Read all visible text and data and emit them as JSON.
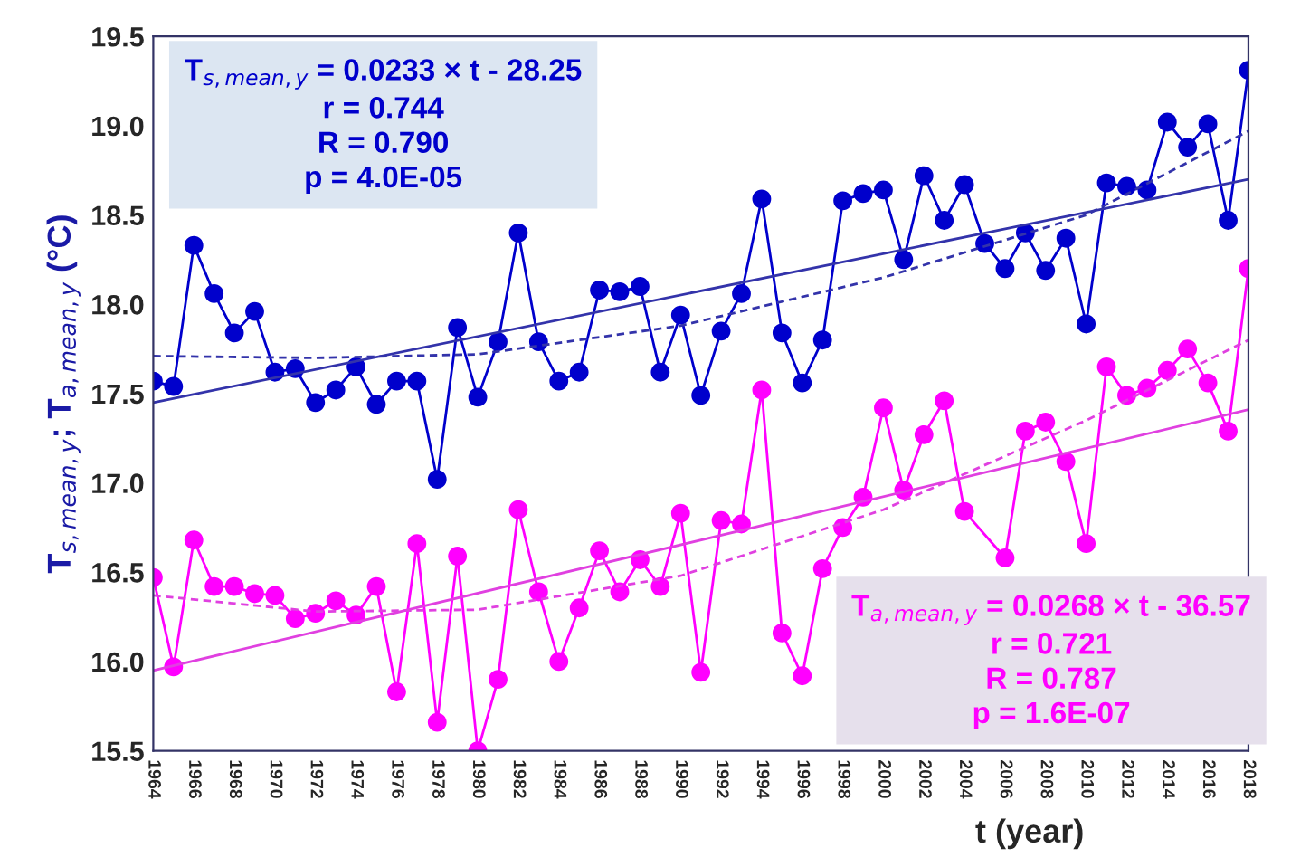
{
  "chart_data": {
    "type": "line",
    "xlabel": "t (year)",
    "ylabel": "T$_{s,mean,y}$; T$_{a,mean,y}$ (°C)",
    "x": [
      1964,
      1965,
      1966,
      1967,
      1968,
      1969,
      1970,
      1971,
      1972,
      1973,
      1974,
      1975,
      1976,
      1977,
      1978,
      1979,
      1980,
      1981,
      1982,
      1983,
      1984,
      1985,
      1986,
      1987,
      1988,
      1989,
      1990,
      1991,
      1992,
      1993,
      1994,
      1995,
      1996,
      1997,
      1998,
      1999,
      2000,
      2001,
      2002,
      2003,
      2004,
      2005,
      2006,
      2007,
      2008,
      2009,
      2010,
      2011,
      2012,
      2013,
      2014,
      2015,
      2016,
      2017,
      2018
    ],
    "series": [
      {
        "color": "#0000cc",
        "marker": "circle",
        "values": [
          17.57,
          17.54,
          18.33,
          18.06,
          17.84,
          17.96,
          17.62,
          17.64,
          17.45,
          17.52,
          17.65,
          17.44,
          17.57,
          17.57,
          17.02,
          17.87,
          17.48,
          17.79,
          18.4,
          17.79,
          17.57,
          17.62,
          18.08,
          18.07,
          18.1,
          17.62,
          17.94,
          17.49,
          17.85,
          18.06,
          18.59,
          17.84,
          17.56,
          17.8,
          18.58,
          18.62,
          18.64,
          18.25,
          18.72,
          18.47,
          18.67,
          18.34,
          18.2,
          18.4,
          18.19,
          18.37,
          17.89,
          18.68,
          18.66,
          18.64,
          19.02,
          18.88,
          19.01,
          18.47,
          19.31
        ]
      },
      {
        "color": "#ff00ff",
        "marker": "circle",
        "values": [
          16.47,
          15.97,
          16.68,
          16.42,
          16.42,
          16.38,
          16.37,
          16.24,
          16.27,
          16.34,
          16.26,
          16.42,
          15.83,
          16.66,
          15.66,
          16.59,
          15.5,
          15.9,
          16.85,
          16.39,
          16.0,
          16.3,
          16.62,
          16.39,
          16.57,
          16.42,
          16.83,
          15.94,
          16.79,
          16.77,
          17.52,
          16.16,
          15.92,
          16.52,
          16.75,
          16.92,
          17.42,
          16.96,
          17.27,
          17.46,
          16.84,
          null,
          16.58,
          17.29,
          17.34,
          17.12,
          16.66,
          17.65,
          17.49,
          17.53,
          17.63,
          17.75,
          17.56,
          17.29,
          18.2
        ]
      },
      {
        "color": "#3333aa",
        "marker": "none",
        "line_style": "solid",
        "x": [
          1964,
          2018
        ],
        "values": [
          17.45,
          18.7
        ]
      },
      {
        "color": "#3333aa",
        "marker": "none",
        "line_style": "dashed",
        "x": [
          1964,
          1972,
          1980,
          1990,
          2000,
          2010,
          2018
        ],
        "values": [
          17.71,
          17.7,
          17.72,
          17.88,
          18.15,
          18.5,
          18.97
        ]
      },
      {
        "color": "#e040e0",
        "marker": "none",
        "line_style": "solid",
        "x": [
          1964,
          2018
        ],
        "values": [
          15.95,
          17.41
        ]
      },
      {
        "color": "#e040e0",
        "marker": "none",
        "line_style": "dashed",
        "x": [
          1964,
          1972,
          1980,
          1990,
          2000,
          2010,
          2018
        ],
        "values": [
          16.37,
          16.28,
          16.29,
          16.48,
          16.85,
          17.35,
          17.8
        ]
      }
    ],
    "xlim": [
      1964,
      2018
    ],
    "xticks": [
      1964,
      1966,
      1968,
      1970,
      1972,
      1974,
      1976,
      1978,
      1980,
      1982,
      1984,
      1986,
      1988,
      1990,
      1992,
      1994,
      1996,
      1998,
      2000,
      2002,
      2004,
      2006,
      2008,
      2010,
      2012,
      2014,
      2016,
      2018
    ],
    "ylim": [
      15.5,
      19.5
    ],
    "yticks": [
      15.5,
      {
        "value": 16,
        "label": "16.0"
      },
      16.5,
      {
        "value": 17,
        "label": "17.0"
      },
      17.5,
      {
        "value": 18,
        "label": "18.0"
      },
      18.5,
      {
        "value": 19,
        "label": "19.0"
      },
      19.5
    ],
    "grid": false,
    "legend": false,
    "annotations": [
      "T$_{s,mean,y}$ = 0.0233 × t - 28.25\nr = 0.744\nR = 0.790\np = 4.0E-05",
      "T$_{a,mean,y}$ = 0.0268 × t - 36.57\nr = 0.721\nR = 0.787\np = 1.6E-07"
    ]
  }
}
